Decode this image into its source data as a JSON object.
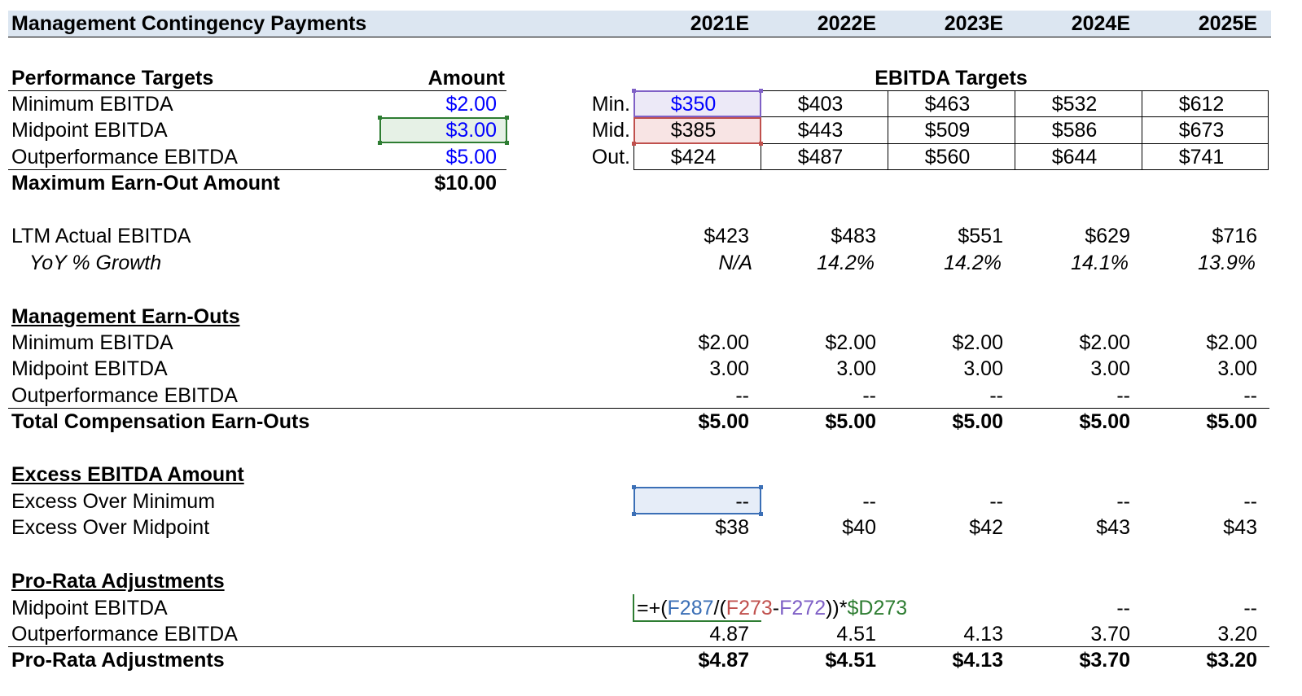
{
  "header": {
    "title": "Management Contingency Payments",
    "years": [
      "2021E",
      "2022E",
      "2023E",
      "2024E",
      "2025E"
    ]
  },
  "performance": {
    "title": "Performance Targets",
    "amount_header": "Amount",
    "rows": [
      {
        "label": "Minimum EBITDA",
        "amount": "$2.00"
      },
      {
        "label": "Midpoint EBITDA",
        "amount": "$3.00"
      },
      {
        "label": "Outperformance EBITDA",
        "amount": "$5.00"
      }
    ],
    "max_label": "Maximum Earn-Out Amount",
    "max_value": "$10.00"
  },
  "targets": {
    "title": "EBITDA Targets",
    "rows": [
      {
        "label": "Min.",
        "values": [
          "$350",
          "$403",
          "$463",
          "$532",
          "$612"
        ]
      },
      {
        "label": "Mid.",
        "values": [
          "$385",
          "$443",
          "$509",
          "$586",
          "$673"
        ]
      },
      {
        "label": "Out.",
        "values": [
          "$424",
          "$487",
          "$560",
          "$644",
          "$741"
        ]
      }
    ]
  },
  "ltm": {
    "label": "LTM Actual EBITDA",
    "values": [
      "$423",
      "$483",
      "$551",
      "$629",
      "$716"
    ],
    "growth_label": "YoY % Growth",
    "growth": [
      "N/A",
      "14.2%",
      "14.2%",
      "14.1%",
      "13.9%"
    ]
  },
  "earnouts": {
    "title": "Management Earn-Outs",
    "rows": [
      {
        "label": "Minimum EBITDA",
        "values": [
          "$2.00",
          "$2.00",
          "$2.00",
          "$2.00",
          "$2.00"
        ]
      },
      {
        "label": "Midpoint EBITDA",
        "values": [
          "3.00",
          "3.00",
          "3.00",
          "3.00",
          "3.00"
        ]
      },
      {
        "label": "Outperformance EBITDA",
        "values": [
          "--",
          "--",
          "--",
          "--",
          "--"
        ]
      }
    ],
    "total_label": "Total Compensation Earn-Outs",
    "total": [
      "$5.00",
      "$5.00",
      "$5.00",
      "$5.00",
      "$5.00"
    ]
  },
  "excess": {
    "title": "Excess EBITDA Amount",
    "rows": [
      {
        "label": "Excess Over Minimum",
        "values": [
          "--",
          "--",
          "--",
          "--",
          "--"
        ]
      },
      {
        "label": "Excess Over Midpoint",
        "values": [
          "$38",
          "$40",
          "$42",
          "$43",
          "$43"
        ]
      }
    ]
  },
  "prorata": {
    "title": "Pro-Rata Adjustments",
    "rows": [
      {
        "label": "Midpoint EBITDA",
        "values": [
          "",
          "",
          "",
          "--",
          "--"
        ]
      },
      {
        "label": "Outperformance EBITDA",
        "values": [
          "4.87",
          "4.51",
          "4.13",
          "3.70",
          "3.20"
        ]
      }
    ],
    "total_label": "Pro-Rata Adjustments",
    "total": [
      "$4.87",
      "$4.51",
      "$4.13",
      "$3.70",
      "$3.20"
    ],
    "formula": {
      "p1": "=+(",
      "ref1": "F287",
      "p2": "/(",
      "ref2": "F273",
      "p3": "-",
      "ref3": "F272",
      "p4": "))*",
      "ref4": "$D273"
    }
  },
  "colors": {
    "header_fill": "#dce6f1",
    "input_blue": "#0000ff",
    "ref_blue": "#3b6fb6",
    "ref_red": "#c0504d",
    "ref_purple": "#7f60c6",
    "ref_green": "#2e7d32"
  }
}
